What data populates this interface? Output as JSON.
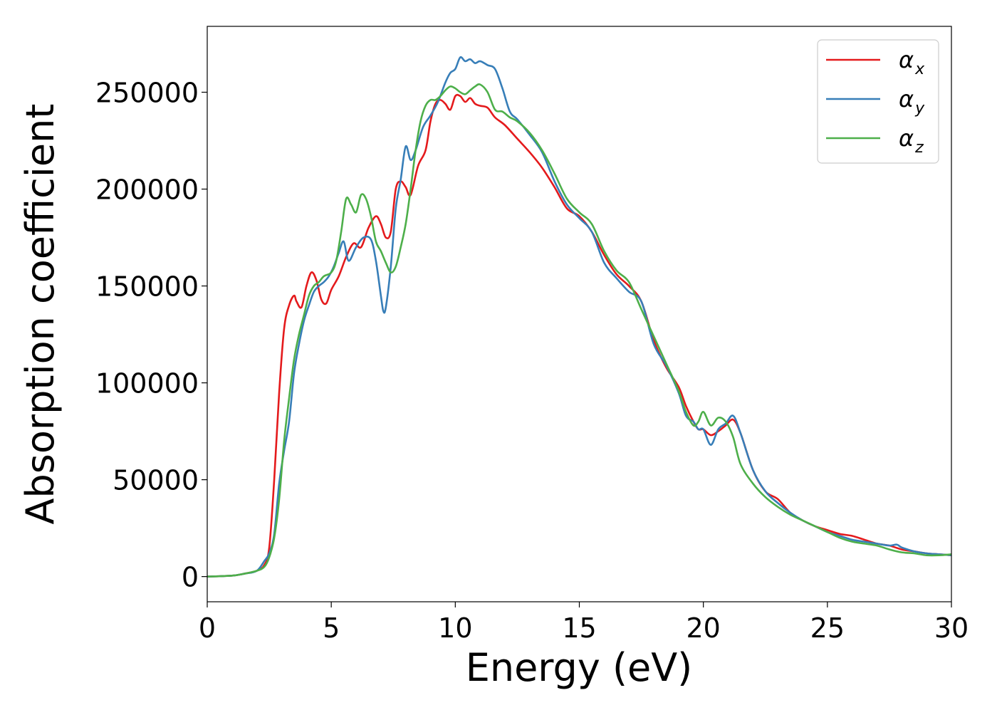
{
  "chart_data": {
    "type": "line",
    "title": "",
    "xlabel": "Energy (eV)",
    "ylabel": "Absorption coefficient",
    "xlim": [
      0,
      30
    ],
    "ylim": [
      -13000,
      284000
    ],
    "xticks": [
      0,
      5,
      10,
      15,
      20,
      25,
      30
    ],
    "yticks": [
      0,
      50000,
      100000,
      150000,
      200000,
      250000
    ],
    "grid": false,
    "legend_position": "top-right",
    "series": [
      {
        "name": "α",
        "subscript": "x",
        "color": "#e41a1c",
        "x": [
          0,
          1,
          1.5,
          2.0,
          2.3,
          2.5,
          2.7,
          2.9,
          3.1,
          3.3,
          3.5,
          3.6,
          3.8,
          4.0,
          4.2,
          4.4,
          4.6,
          4.8,
          5.0,
          5.3,
          5.6,
          5.9,
          6.2,
          6.5,
          6.8,
          7.0,
          7.2,
          7.4,
          7.6,
          7.8,
          8.0,
          8.2,
          8.5,
          8.8,
          9.0,
          9.2,
          9.4,
          9.6,
          9.8,
          10.0,
          10.2,
          10.4,
          10.6,
          10.8,
          11.0,
          11.3,
          11.6,
          12.0,
          12.5,
          13.0,
          13.5,
          14.0,
          14.5,
          15.0,
          15.5,
          16.0,
          16.5,
          17.0,
          17.5,
          18.0,
          18.5,
          19.0,
          19.3,
          19.6,
          19.8,
          20.0,
          20.3,
          20.6,
          20.9,
          21.2,
          21.5,
          22.0,
          22.5,
          23.0,
          23.5,
          24.0,
          24.5,
          25.0,
          25.5,
          26.0,
          26.5,
          27.0,
          27.5,
          28.0,
          28.5,
          29.0,
          29.5,
          30.0
        ],
        "y": [
          0,
          500,
          1500,
          3000,
          6000,
          15000,
          50000,
          95000,
          128000,
          140000,
          145000,
          142000,
          139000,
          150000,
          157000,
          153000,
          143000,
          141000,
          148000,
          155000,
          165000,
          172000,
          170000,
          180000,
          186000,
          182000,
          175000,
          178000,
          200000,
          204000,
          201000,
          197000,
          212000,
          220000,
          235000,
          244000,
          246000,
          244000,
          241000,
          248000,
          248000,
          245000,
          247000,
          244000,
          243000,
          242000,
          237000,
          233000,
          226000,
          219000,
          211000,
          201000,
          190000,
          186000,
          178000,
          166000,
          156000,
          150000,
          142000,
          122000,
          108000,
          98000,
          88000,
          80000,
          76000,
          76000,
          73000,
          75000,
          78000,
          81000,
          74000,
          55000,
          44000,
          40000,
          33000,
          29000,
          26000,
          24000,
          22000,
          21000,
          19000,
          17000,
          16000,
          14000,
          13000,
          12000,
          11500,
          11000
        ]
      },
      {
        "name": "α",
        "subscript": "y",
        "color": "#377eb8",
        "x": [
          0,
          1,
          1.5,
          2.0,
          2.3,
          2.5,
          2.7,
          2.9,
          3.1,
          3.3,
          3.5,
          3.7,
          3.9,
          4.1,
          4.3,
          4.5,
          4.7,
          4.9,
          5.1,
          5.3,
          5.5,
          5.7,
          6.0,
          6.3,
          6.6,
          6.8,
          7.0,
          7.1,
          7.2,
          7.4,
          7.6,
          7.8,
          8.0,
          8.2,
          8.4,
          8.7,
          9.0,
          9.3,
          9.6,
          9.8,
          10.0,
          10.2,
          10.4,
          10.6,
          10.8,
          11.0,
          11.3,
          11.6,
          11.9,
          12.2,
          12.5,
          13.0,
          13.5,
          14.0,
          14.5,
          15.0,
          15.5,
          16.0,
          16.5,
          17.0,
          17.5,
          18.0,
          18.5,
          19.0,
          19.3,
          19.6,
          19.8,
          20.0,
          20.3,
          20.6,
          20.9,
          21.2,
          21.5,
          22.0,
          22.5,
          23.0,
          23.5,
          24.0,
          24.5,
          25.0,
          25.5,
          26.0,
          26.5,
          27.0,
          27.5,
          27.8,
          28.0,
          28.5,
          29.0,
          29.5,
          30.0
        ],
        "y": [
          0,
          500,
          1500,
          3000,
          8000,
          12000,
          22000,
          48000,
          65000,
          80000,
          105000,
          120000,
          132000,
          140000,
          147000,
          150000,
          152000,
          155000,
          160000,
          167000,
          173000,
          163000,
          170000,
          175000,
          174000,
          163000,
          145000,
          137000,
          139000,
          160000,
          190000,
          205000,
          222000,
          215000,
          220000,
          232000,
          238000,
          245000,
          255000,
          260000,
          262000,
          268000,
          266000,
          267000,
          265000,
          266000,
          264000,
          262000,
          252000,
          240000,
          236000,
          228000,
          219000,
          204000,
          192000,
          185000,
          178000,
          162000,
          154000,
          147000,
          142000,
          120000,
          109000,
          95000,
          83000,
          80000,
          76000,
          76000,
          68000,
          76000,
          79000,
          83000,
          74000,
          55000,
          44000,
          38000,
          33000,
          29000,
          26000,
          23000,
          21000,
          19000,
          18000,
          17000,
          16000,
          16500,
          15000,
          13000,
          12000,
          11500,
          11000
        ]
      },
      {
        "name": "α",
        "subscript": "z",
        "color": "#4daf4a",
        "x": [
          0,
          1,
          1.5,
          2.0,
          2.3,
          2.5,
          2.7,
          2.9,
          3.1,
          3.3,
          3.5,
          3.7,
          3.9,
          4.1,
          4.3,
          4.5,
          4.7,
          5.0,
          5.2,
          5.4,
          5.6,
          5.8,
          6.0,
          6.2,
          6.4,
          6.6,
          6.8,
          7.0,
          7.2,
          7.4,
          7.6,
          7.8,
          8.0,
          8.2,
          8.4,
          8.6,
          8.8,
          9.0,
          9.2,
          9.4,
          9.6,
          9.8,
          10.0,
          10.2,
          10.4,
          10.6,
          10.8,
          11.0,
          11.3,
          11.6,
          11.9,
          12.2,
          12.5,
          13.0,
          13.5,
          14.0,
          14.5,
          15.0,
          15.5,
          16.0,
          16.5,
          17.0,
          17.5,
          18.0,
          18.5,
          19.0,
          19.3,
          19.6,
          19.8,
          20.0,
          20.3,
          20.6,
          20.9,
          21.2,
          21.5,
          22.0,
          22.5,
          23.0,
          23.5,
          24.0,
          24.5,
          25.0,
          25.5,
          26.0,
          26.5,
          27.0,
          27.5,
          28.0,
          28.5,
          29.0,
          29.5,
          30.0
        ],
        "y": [
          0,
          500,
          1500,
          3000,
          5000,
          10000,
          20000,
          40000,
          70000,
          92000,
          112000,
          125000,
          135000,
          145000,
          150000,
          152000,
          155000,
          157000,
          163000,
          178000,
          195000,
          192000,
          188000,
          197000,
          195000,
          186000,
          173000,
          168000,
          162000,
          157000,
          160000,
          170000,
          182000,
          200000,
          220000,
          235000,
          243000,
          246000,
          246000,
          248000,
          251000,
          253000,
          252000,
          250000,
          249000,
          251000,
          253000,
          254000,
          250000,
          241000,
          240000,
          237000,
          235000,
          229000,
          220000,
          208000,
          195000,
          188000,
          182000,
          168000,
          158000,
          152000,
          138000,
          124000,
          110000,
          96000,
          85000,
          78000,
          80000,
          85000,
          78000,
          82000,
          80000,
          72000,
          58000,
          48000,
          41000,
          36000,
          32000,
          29000,
          26000,
          23000,
          20000,
          18000,
          17000,
          16000,
          14000,
          12500,
          12000,
          11000,
          11000,
          11500
        ]
      }
    ]
  }
}
